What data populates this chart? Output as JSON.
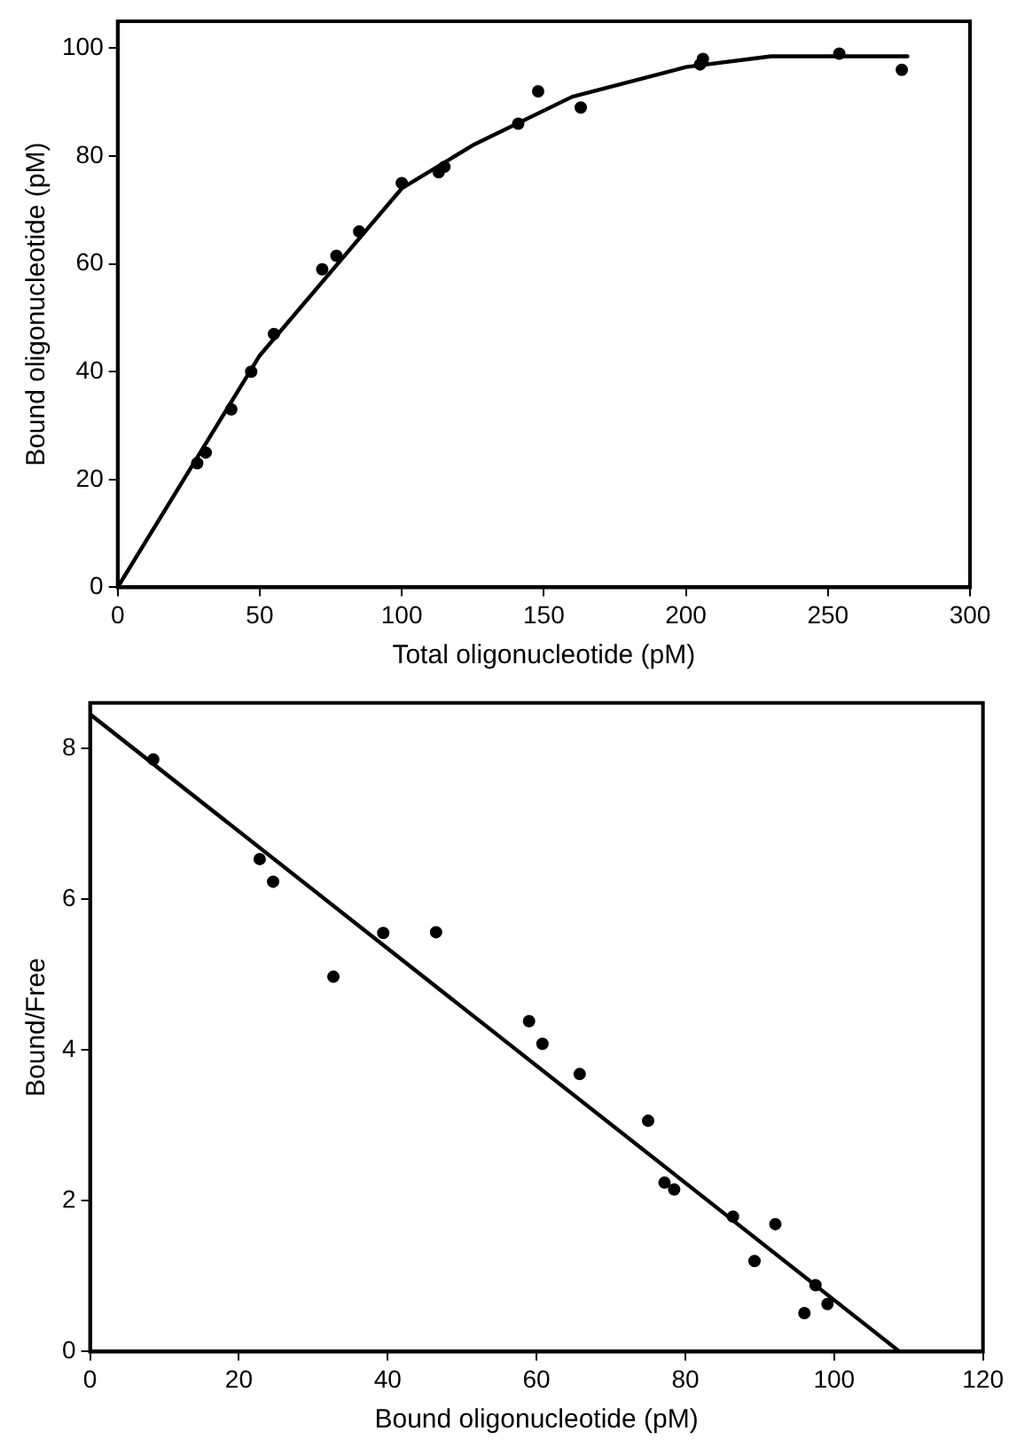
{
  "chart_data": [
    {
      "type": "scatter",
      "xlabel": "Total oligonucleotide (pM)",
      "ylabel": "Bound oligonucleotide (pM)",
      "xlim": [
        0,
        300
      ],
      "ylim": [
        0,
        105
      ],
      "xticks": [
        0,
        50,
        100,
        150,
        200,
        250,
        300
      ],
      "yticks": [
        0,
        20,
        40,
        60,
        80,
        100
      ],
      "grid": false,
      "legend": false,
      "marker": "circle",
      "series": [
        {
          "color": "#000000",
          "x": [
            28,
            31,
            40,
            47,
            55,
            72,
            77,
            85,
            100,
            113,
            115,
            141,
            148,
            163,
            205,
            206,
            254,
            276
          ],
          "values": [
            23,
            25,
            33,
            40,
            47,
            59,
            61.5,
            66,
            75,
            77,
            78,
            86,
            92,
            89,
            97,
            98,
            99,
            96
          ]
        },
        {
          "type": "line",
          "color": "#000000",
          "line_style": "solid",
          "marker": "none",
          "x": [
            0,
            50,
            100,
            125,
            160,
            200,
            230,
            278
          ],
          "values": [
            0,
            43,
            74,
            82,
            91,
            96.5,
            98.5,
            98.5
          ]
        }
      ]
    },
    {
      "type": "scatter",
      "xlabel": "Bound oligonucleotide (pM)",
      "ylabel": "Bound/Free",
      "xlim": [
        0,
        120
      ],
      "ylim": [
        0,
        8.6
      ],
      "xticks": [
        0,
        20,
        40,
        60,
        80,
        100,
        120
      ],
      "yticks": [
        0,
        2,
        4,
        6,
        8
      ],
      "grid": false,
      "legend": false,
      "marker": "circle",
      "series": [
        {
          "color": "#000000",
          "x": [
            8.5,
            22.8,
            24.6,
            32.7,
            39.4,
            46.5,
            59,
            60.8,
            65.8,
            75,
            77.2,
            78.5,
            86.4,
            89.3,
            92.1,
            96,
            97.5,
            99.1
          ],
          "values": [
            7.85,
            6.53,
            6.23,
            4.97,
            5.55,
            5.56,
            4.38,
            4.08,
            3.68,
            3.06,
            2.24,
            2.15,
            1.79,
            1.2,
            1.69,
            0.51,
            0.88,
            0.63
          ]
        },
        {
          "type": "line",
          "color": "#000000",
          "line_style": "solid",
          "marker": "none",
          "x": [
            0,
            108.8
          ],
          "values": [
            8.45,
            0
          ]
        }
      ]
    }
  ]
}
